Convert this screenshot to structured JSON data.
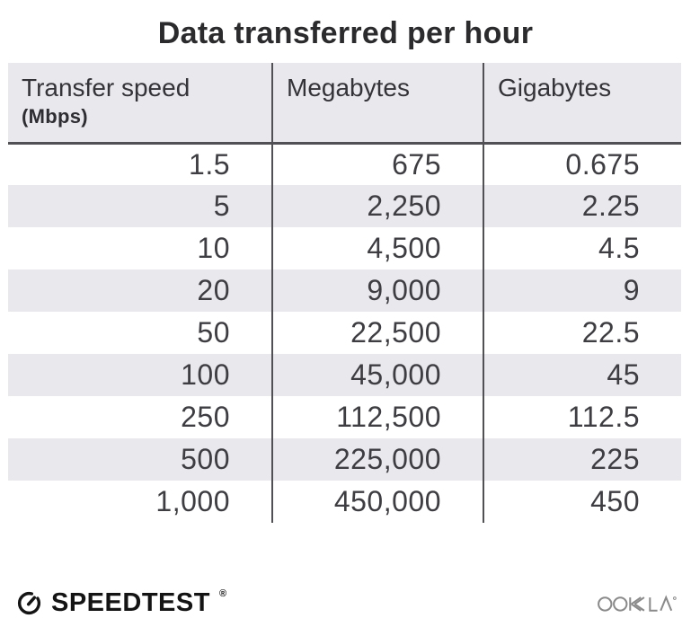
{
  "title": "Data transferred per hour",
  "table": {
    "columns": [
      {
        "label": "Transfer speed",
        "sublabel": "(Mbps)"
      },
      {
        "label": "Megabytes",
        "sublabel": ""
      },
      {
        "label": "Gigabytes",
        "sublabel": ""
      }
    ],
    "rows": [
      [
        "1.5",
        "675",
        "0.675"
      ],
      [
        "5",
        "2,250",
        "2.25"
      ],
      [
        "10",
        "4,500",
        "4.5"
      ],
      [
        "20",
        "9,000",
        "9"
      ],
      [
        "50",
        "22,500",
        "22.5"
      ],
      [
        "100",
        "45,000",
        "45"
      ],
      [
        "250",
        "112,500",
        "112.5"
      ],
      [
        "500",
        "225,000",
        "225"
      ],
      [
        "1,000",
        "450,000",
        "450"
      ]
    ]
  },
  "footer": {
    "speedtest_label": "SPEEDTEST",
    "registered_mark": "®",
    "ookla_label": "OOKLA"
  },
  "icons": {
    "speedtest_gauge": "speedometer gauge ring with needle",
    "ookla_wordmark": "gray OOKLA stylized wordmark"
  },
  "colors": {
    "header_bg": "#e9e9ed",
    "alt_row_bg": "#e9e9ed",
    "grid_line": "#515155",
    "title_text": "#2b2b2e",
    "number_text": "#3d3d42",
    "logo_black": "#141414",
    "ookla_gray": "#8a8a8a"
  },
  "chart_data": {
    "type": "table",
    "title": "Data transferred per hour",
    "columns": [
      "Transfer speed (Mbps)",
      "Megabytes",
      "Gigabytes"
    ],
    "rows": [
      [
        1.5,
        675,
        0.675
      ],
      [
        5,
        2250,
        2.25
      ],
      [
        10,
        4500,
        4.5
      ],
      [
        20,
        9000,
        9
      ],
      [
        50,
        22500,
        22.5
      ],
      [
        100,
        45000,
        45
      ],
      [
        250,
        112500,
        112.5
      ],
      [
        500,
        225000,
        225
      ],
      [
        1000,
        450000,
        450
      ]
    ]
  }
}
